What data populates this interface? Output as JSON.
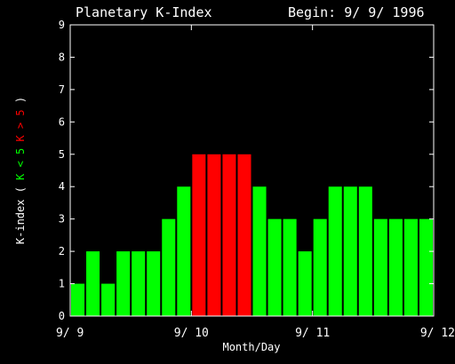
{
  "chart_data": {
    "type": "bar",
    "title": "Planetary K-Index",
    "subtitle": "Begin: 9/ 9/ 1996",
    "xlabel": "Month/Day",
    "ylabel_parts": [
      {
        "text": "K-index",
        "color": "#ffffff"
      },
      {
        "text": "(",
        "color": "#ffffff"
      },
      {
        "text": "K < 5",
        "color": "#00ff00"
      },
      {
        "text": "K > 5",
        "color": "#ff0000"
      },
      {
        "text": ")",
        "color": "#ffffff"
      }
    ],
    "xtick_labels": [
      "9/ 9",
      "9/ 10",
      "9/ 11",
      "9/ 12"
    ],
    "ytick_labels": [
      "0",
      "1",
      "2",
      "3",
      "4",
      "5",
      "6",
      "7",
      "8",
      "9"
    ],
    "ylim": [
      0,
      9
    ],
    "values": [
      1,
      2,
      1,
      2,
      2,
      2,
      3,
      4,
      5,
      5,
      5,
      5,
      4,
      3,
      3,
      2,
      3,
      4,
      4,
      4,
      3,
      3,
      3,
      3
    ],
    "colors": {
      "below": "#00ff00",
      "storm": "#ff0000",
      "axes": "#ffffff",
      "background": "#000000"
    },
    "storm_threshold": 5
  }
}
